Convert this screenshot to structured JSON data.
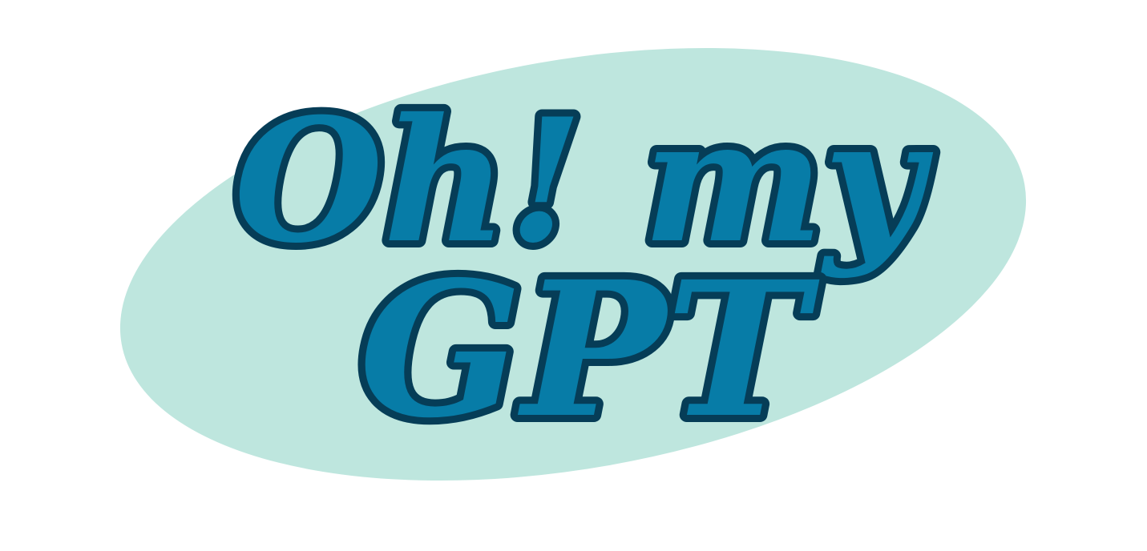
{
  "logo": {
    "line1": "Oh! my",
    "line2": "GPT"
  },
  "colors": {
    "background": "#ffffff",
    "ellipse": "#bee6de",
    "letter_fill": "#077ca7",
    "letter_outline": "#063d57"
  }
}
